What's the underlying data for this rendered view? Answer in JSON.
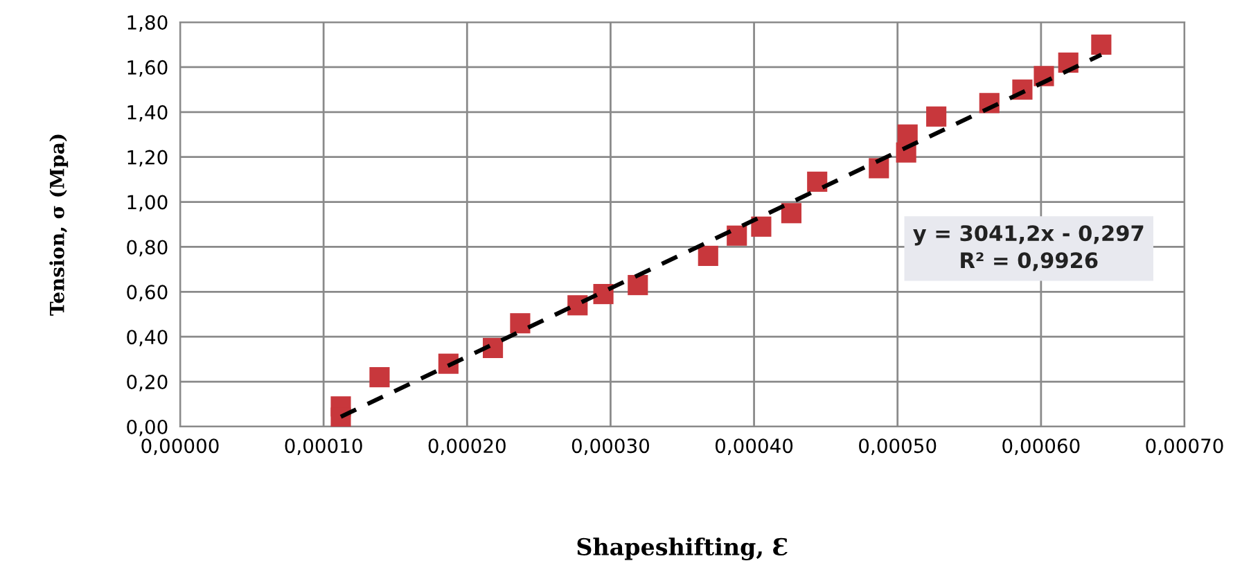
{
  "chart_data": {
    "type": "scatter",
    "xlabel": "Shapeshifting, Ɛ",
    "ylabel": "Tension, σ (Mpa)",
    "series": [
      {
        "color": "#c8373c",
        "marker": "square",
        "x": [
          0.000112,
          0.000112,
          0.000139,
          0.000187,
          0.000218,
          0.000237,
          0.000277,
          0.000295,
          0.000319,
          0.000368,
          0.000388,
          0.000405,
          0.000426,
          0.000444,
          0.000487,
          0.000506,
          0.000507,
          0.000527,
          0.000564,
          0.000587,
          0.000602,
          0.000619,
          0.000642
        ],
        "values": [
          0.09,
          0.04,
          0.22,
          0.28,
          0.35,
          0.46,
          0.54,
          0.59,
          0.63,
          0.76,
          0.85,
          0.89,
          0.95,
          1.09,
          1.15,
          1.22,
          1.3,
          1.38,
          1.44,
          1.5,
          1.56,
          1.62,
          1.7
        ]
      },
      {
        "type": "line",
        "color": "#000000",
        "line_style": "dashed",
        "marker": "none",
        "x": [
          0.000112,
          0.000642
        ],
        "values": [
          0.044,
          1.655
        ]
      }
    ],
    "annotations": [
      "y = 3041,2x - 0,297\nR² = 0,9926"
    ],
    "xlim": [
      0,
      0.0007
    ],
    "ylim": [
      0,
      1.8
    ],
    "xticks": [
      {
        "value": 0,
        "label": "0,00000"
      },
      {
        "value": 0.0001,
        "label": "0,00010"
      },
      {
        "value": 0.0002,
        "label": "0,00020"
      },
      {
        "value": 0.0003,
        "label": "0,00030"
      },
      {
        "value": 0.0004,
        "label": "0,00040"
      },
      {
        "value": 0.0005,
        "label": "0,00050"
      },
      {
        "value": 0.0006,
        "label": "0,00060"
      },
      {
        "value": 0.0007,
        "label": "0,00070"
      }
    ],
    "yticks": [
      {
        "value": 0,
        "label": "0,00"
      },
      {
        "value": 0.2,
        "label": "0,20"
      },
      {
        "value": 0.4,
        "label": "0,40"
      },
      {
        "value": 0.6,
        "label": "0,60"
      },
      {
        "value": 0.8,
        "label": "0,80"
      },
      {
        "value": 1.0,
        "label": "1,00"
      },
      {
        "value": 1.2,
        "label": "1,20"
      },
      {
        "value": 1.4,
        "label": "1,40"
      },
      {
        "value": 1.6,
        "label": "1,60"
      },
      {
        "value": 1.8,
        "label": "1,80"
      }
    ],
    "grid": true,
    "legend": false
  }
}
